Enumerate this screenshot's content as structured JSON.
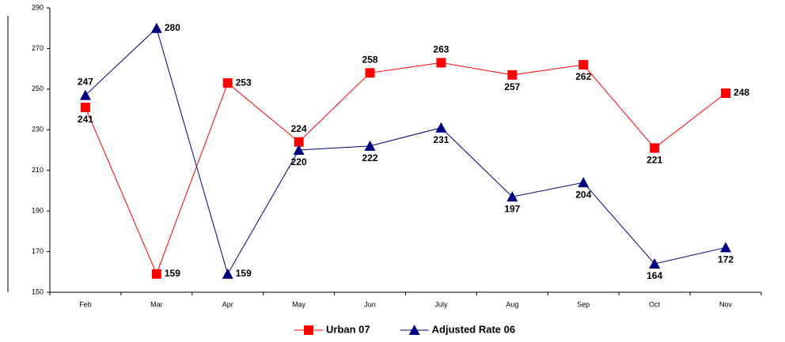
{
  "chart_data": {
    "type": "line",
    "categories": [
      "Feb",
      "Mar",
      "Apr",
      "May",
      "Jun",
      "July",
      "Aug",
      "Sep",
      "Oct",
      "Nov"
    ],
    "series": [
      {
        "name": "Urban 07",
        "color": "#ff0000",
        "marker": "square",
        "values": [
          241,
          159,
          253,
          224,
          258,
          263,
          257,
          262,
          221,
          248
        ]
      },
      {
        "name": "Adjusted Rate 06",
        "color": "#000080",
        "marker": "triangle",
        "values": [
          247,
          280,
          159,
          220,
          222,
          231,
          197,
          204,
          164,
          172
        ]
      }
    ],
    "ylim": [
      150,
      290
    ],
    "yticks": [
      150,
      170,
      190,
      210,
      230,
      250,
      270,
      290
    ],
    "legend": "bottom"
  }
}
